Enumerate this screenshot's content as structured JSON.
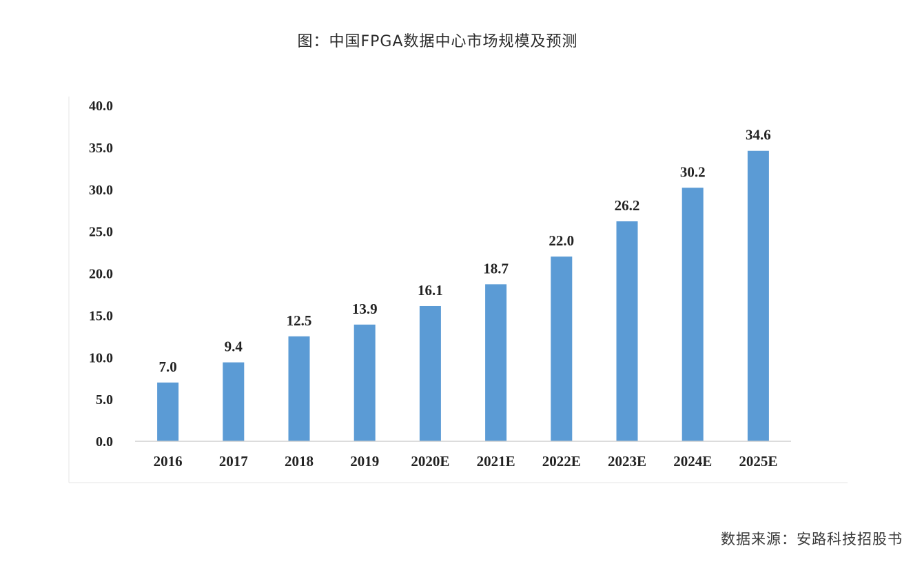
{
  "chart_data": {
    "type": "bar",
    "title": "图：中国FPGA数据中心市场规模及预测",
    "xlabel": "",
    "ylabel": "",
    "categories": [
      "2016",
      "2017",
      "2018",
      "2019",
      "2020E",
      "2021E",
      "2022E",
      "2023E",
      "2024E",
      "2025E"
    ],
    "values": [
      7.0,
      9.4,
      12.5,
      13.9,
      16.1,
      18.7,
      22.0,
      26.2,
      30.2,
      34.6
    ],
    "value_labels": [
      "7.0",
      "9.4",
      "12.5",
      "13.9",
      "16.1",
      "18.7",
      "22.0",
      "26.2",
      "30.2",
      "34.6"
    ],
    "ylim": [
      0,
      40
    ],
    "yticks": [
      "0.0",
      "5.0",
      "10.0",
      "15.0",
      "20.0",
      "25.0",
      "30.0",
      "35.0",
      "40.0"
    ],
    "grid": false,
    "legend": "none",
    "bar_color": "#5b9bd5",
    "axis_color": "#d0d0d0"
  },
  "source": "数据来源：安路科技招股书"
}
